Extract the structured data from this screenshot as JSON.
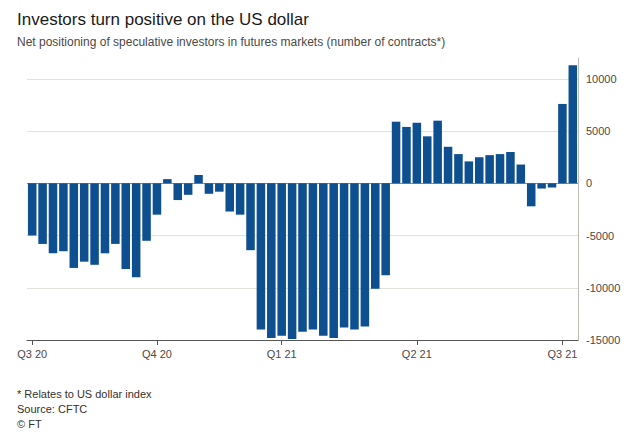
{
  "chart_data": {
    "type": "bar",
    "title": "Investors turn positive on the US dollar",
    "subtitle": "Net positioning of speculative investors in futures markets (number of contracts*)",
    "annotations": [
      "* Relates to US dollar index",
      "Source: CFTC",
      "© FT"
    ],
    "categories": [
      "Q3 20",
      null,
      null,
      null,
      null,
      null,
      null,
      null,
      null,
      null,
      null,
      null,
      "Q4 20",
      null,
      null,
      null,
      null,
      null,
      null,
      null,
      null,
      null,
      null,
      null,
      "Q1 21",
      null,
      null,
      null,
      null,
      null,
      null,
      null,
      null,
      null,
      null,
      null,
      null,
      "Q2 21",
      null,
      null,
      null,
      null,
      null,
      null,
      null,
      null,
      null,
      null,
      null,
      null,
      null,
      "Q3 21",
      null
    ],
    "values": [
      -5000,
      -5800,
      -6700,
      -6500,
      -8100,
      -7500,
      -7800,
      -6700,
      -5800,
      -8200,
      -9000,
      -5500,
      -3000,
      400,
      -1600,
      -1100,
      800,
      -1000,
      -800,
      -2700,
      -3000,
      -6400,
      -14000,
      -14800,
      -14600,
      -14900,
      -14200,
      -14000,
      -14600,
      -14800,
      -13800,
      -14000,
      -13700,
      -10100,
      -8800,
      5900,
      5400,
      5800,
      4500,
      6000,
      3500,
      2800,
      2100,
      2500,
      2700,
      2800,
      3000,
      1800,
      -2200,
      -500,
      -400,
      7600,
      11300
    ],
    "color": "#0d4f8f",
    "ylim": [
      -15000,
      12000
    ],
    "yticks": [
      -15000,
      -10000,
      -5000,
      0,
      5000,
      10000
    ],
    "grid": true
  }
}
